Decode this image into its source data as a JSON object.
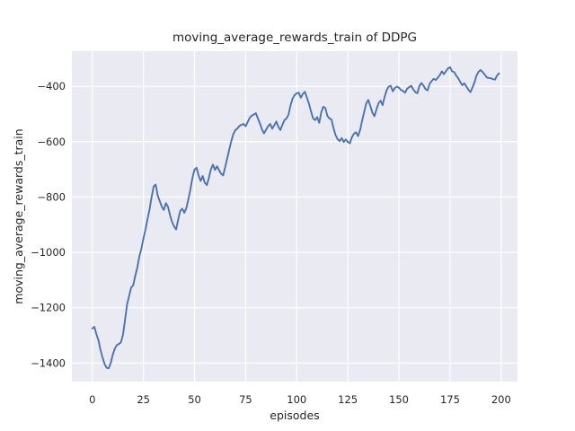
{
  "chart_data": {
    "type": "line",
    "title": "moving_average_rewards_train of DDPG",
    "xlabel": "episodes",
    "ylabel": "moving_average_rewards_train",
    "series_name": "moving average rewards (train), DDPG",
    "x_range": {
      "start": 0,
      "end": 199,
      "note": "x value = episode index"
    },
    "y": [
      -1275,
      -1269,
      -1295,
      -1318,
      -1352,
      -1380,
      -1403,
      -1417,
      -1419,
      -1400,
      -1370,
      -1348,
      -1335,
      -1331,
      -1325,
      -1298,
      -1245,
      -1188,
      -1158,
      -1127,
      -1119,
      -1085,
      -1055,
      -1015,
      -987,
      -950,
      -918,
      -880,
      -845,
      -800,
      -762,
      -755,
      -795,
      -815,
      -835,
      -847,
      -822,
      -835,
      -865,
      -890,
      -906,
      -917,
      -882,
      -850,
      -842,
      -857,
      -840,
      -808,
      -772,
      -730,
      -701,
      -694,
      -722,
      -742,
      -724,
      -748,
      -757,
      -732,
      -700,
      -683,
      -702,
      -689,
      -703,
      -716,
      -722,
      -692,
      -660,
      -628,
      -598,
      -572,
      -558,
      -552,
      -543,
      -539,
      -536,
      -544,
      -529,
      -514,
      -506,
      -502,
      -497,
      -516,
      -534,
      -556,
      -570,
      -557,
      -544,
      -536,
      -553,
      -541,
      -527,
      -546,
      -558,
      -539,
      -522,
      -516,
      -502,
      -468,
      -444,
      -431,
      -425,
      -423,
      -441,
      -427,
      -420,
      -441,
      -463,
      -491,
      -516,
      -522,
      -511,
      -532,
      -494,
      -474,
      -478,
      -507,
      -516,
      -520,
      -551,
      -576,
      -591,
      -598,
      -587,
      -601,
      -592,
      -601,
      -606,
      -584,
      -571,
      -566,
      -580,
      -558,
      -524,
      -492,
      -462,
      -449,
      -471,
      -495,
      -508,
      -484,
      -461,
      -452,
      -468,
      -438,
      -414,
      -401,
      -398,
      -418,
      -406,
      -401,
      -405,
      -413,
      -417,
      -423,
      -409,
      -403,
      -398,
      -411,
      -421,
      -425,
      -399,
      -388,
      -397,
      -410,
      -415,
      -391,
      -381,
      -373,
      -377,
      -369,
      -359,
      -346,
      -356,
      -345,
      -335,
      -331,
      -346,
      -348,
      -361,
      -371,
      -384,
      -396,
      -389,
      -401,
      -412,
      -421,
      -404,
      -385,
      -360,
      -347,
      -341,
      -349,
      -358,
      -368,
      -370,
      -371,
      -374,
      -376,
      -361,
      -353
    ],
    "xlim": [
      -10,
      208
    ],
    "ylim": [
      -1467,
      -273
    ],
    "xticks": [
      {
        "v": 0,
        "label": "0"
      },
      {
        "v": 25,
        "label": "25"
      },
      {
        "v": 50,
        "label": "50"
      },
      {
        "v": 75,
        "label": "75"
      },
      {
        "v": 100,
        "label": "100"
      },
      {
        "v": 125,
        "label": "125"
      },
      {
        "v": 150,
        "label": "150"
      },
      {
        "v": 175,
        "label": "175"
      },
      {
        "v": 200,
        "label": "200"
      }
    ],
    "yticks": [
      {
        "v": -400,
        "label": "−400"
      },
      {
        "v": -600,
        "label": "−600"
      },
      {
        "v": -800,
        "label": "−800"
      },
      {
        "v": -1000,
        "label": "−1000"
      },
      {
        "v": -1200,
        "label": "−1200"
      },
      {
        "v": -1400,
        "label": "−1400"
      }
    ],
    "grid": true,
    "legend": "none",
    "colors": {
      "line": "#4c72b0",
      "plot_bg": "#eaeaf2",
      "grid": "#ffffff",
      "figure_bg": "#ffffff",
      "text": "#262626"
    }
  }
}
